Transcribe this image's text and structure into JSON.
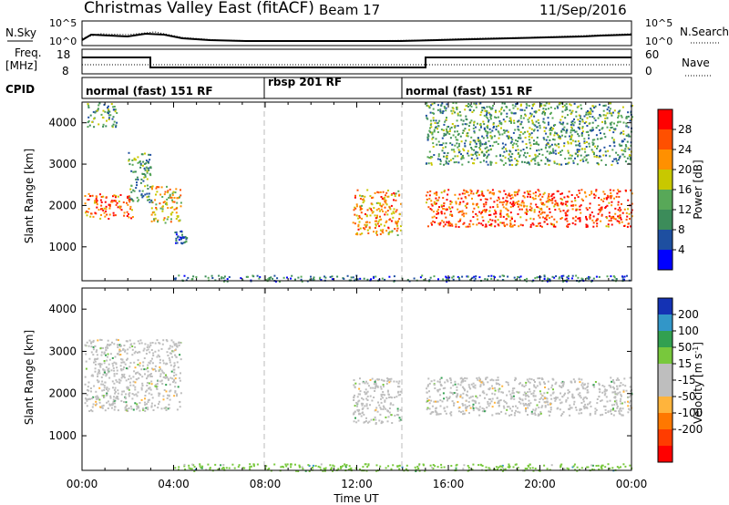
{
  "header": {
    "station": "Christmas Valley East (fitACF)",
    "beam": "Beam 17",
    "date": "11/Sep/2016"
  },
  "noise_panel": {
    "left_label": "N.Sky",
    "right_label": "N.Search",
    "left_ticks": [
      "10^5",
      "10^0"
    ],
    "right_ticks": [
      "10^5",
      "10^0"
    ]
  },
  "freq_panel": {
    "left_label_1": "Freq.",
    "left_label_2": "[MHz]",
    "right_label": "Nave",
    "cpid_label": "CPID",
    "left_ticks": [
      "18",
      "8"
    ],
    "right_ticks": [
      "60",
      "0"
    ]
  },
  "cpid_panel": {
    "segments": [
      {
        "label": "normal (fast) 151 RF",
        "start": 0,
        "end": 8
      },
      {
        "label": "rbsp 201 RF",
        "start": 8,
        "end": 14
      },
      {
        "label": "normal (fast) 151 RF",
        "start": 14,
        "end": 24
      }
    ]
  },
  "colors": {
    "power_scale": [
      "#0000ff",
      "#1e4fa0",
      "#3c8c5a",
      "#58a858",
      "#c8c800",
      "#ff9000",
      "#ff5000",
      "#ff0000"
    ],
    "velocity_scale": [
      "#1432b4",
      "#3296c8",
      "#32a050",
      "#78c83c",
      "#bebebe",
      "#bebebe",
      "#ffb43c",
      "#ff7800",
      "#ff3c00",
      "#ff0000"
    ]
  },
  "chart_data": [
    {
      "type": "heatmap",
      "panel": "power",
      "ylabel": "Slant Range [km]",
      "yticks": [
        1000,
        2000,
        3000,
        4000
      ],
      "ylim": [
        180,
        4500
      ],
      "xticks": [
        "00:00",
        "04:00",
        "08:00",
        "12:00",
        "16:00",
        "20:00",
        "00:00"
      ],
      "xlim": [
        0,
        24
      ],
      "colorbar": {
        "label": "Power [dB]",
        "ticks": [
          "28",
          "24",
          "20",
          "16",
          "12",
          "8",
          "4"
        ],
        "range": [
          0,
          32
        ]
      },
      "scatter_regions": [
        {
          "t": [
            0.1,
            2.2
          ],
          "r": [
            1700,
            2300
          ],
          "value": 25
        },
        {
          "t": [
            2.0,
            3.0
          ],
          "r": [
            2100,
            3300
          ],
          "value": 12
        },
        {
          "t": [
            3.0,
            4.3
          ],
          "r": [
            1600,
            2500
          ],
          "value": 20
        },
        {
          "t": [
            0.2,
            1.5
          ],
          "r": [
            3900,
            4500
          ],
          "value": 12
        },
        {
          "t": [
            4.0,
            4.6
          ],
          "r": [
            1100,
            1400
          ],
          "value": 6
        },
        {
          "t": [
            4.0,
            24
          ],
          "r": [
            180,
            330
          ],
          "value": 8
        },
        {
          "t": [
            11.8,
            13.9
          ],
          "r": [
            1300,
            2400
          ],
          "value": 22
        },
        {
          "t": [
            15.0,
            24
          ],
          "r": [
            1500,
            2400
          ],
          "value": 26
        },
        {
          "t": [
            15.0,
            24
          ],
          "r": [
            3000,
            4500
          ],
          "value": 12
        }
      ]
    },
    {
      "type": "heatmap",
      "panel": "velocity",
      "ylabel": "Slant Range [km]",
      "yticks": [
        1000,
        2000,
        3000,
        4000
      ],
      "ylim": [
        180,
        4500
      ],
      "xticks": [
        "00:00",
        "04:00",
        "08:00",
        "12:00",
        "16:00",
        "20:00",
        "00:00"
      ],
      "xlim": [
        0,
        24
      ],
      "xlabel": "Time UT",
      "colorbar": {
        "label": "Velocity [m s",
        "label_sup": "-1",
        "label_end": "]",
        "ticks": [
          "200",
          "100",
          "50",
          "15",
          "-15",
          "-50",
          "-100",
          "-200"
        ],
        "range": [
          -250,
          250
        ]
      },
      "scatter_regions": [
        {
          "t": [
            0.1,
            4.3
          ],
          "r": [
            1600,
            3300
          ],
          "value": 0
        },
        {
          "t": [
            11.8,
            13.9
          ],
          "r": [
            1300,
            2400
          ],
          "value": 0
        },
        {
          "t": [
            15.0,
            24
          ],
          "r": [
            1500,
            2400
          ],
          "value": 0
        },
        {
          "t": [
            4.0,
            24
          ],
          "r": [
            180,
            350
          ],
          "value": 40
        }
      ]
    }
  ]
}
